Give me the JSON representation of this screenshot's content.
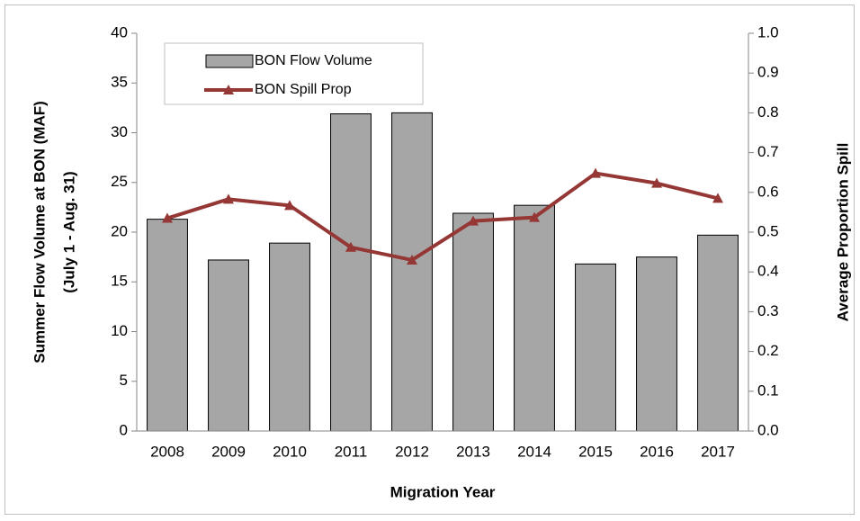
{
  "chart_data": {
    "type": "bar",
    "xlabel": "Migration Year",
    "ylabel": [
      "Summer Flow Volume at BON (MAF)",
      "(July 1 - Aug. 31)"
    ],
    "y2label": "Average Proportion Spill",
    "categories": [
      "2008",
      "2009",
      "2010",
      "2011",
      "2012",
      "2013",
      "2014",
      "2015",
      "2016",
      "2017"
    ],
    "series": [
      {
        "name": "BON Flow Volume",
        "type": "bar",
        "axis": "y",
        "color": "#a6a6a6",
        "values": [
          21.3,
          17.2,
          18.9,
          31.9,
          32.0,
          21.9,
          22.7,
          16.8,
          17.5,
          19.7
        ]
      },
      {
        "name": "BON Spill Prop",
        "type": "line",
        "axis": "y2",
        "color": "#953735",
        "values": [
          0.535,
          0.583,
          0.567,
          0.462,
          0.43,
          0.528,
          0.537,
          0.648,
          0.623,
          0.585
        ]
      }
    ],
    "ylim": [
      0,
      40
    ],
    "yticks": [
      0,
      5,
      10,
      15,
      20,
      25,
      30,
      35,
      40
    ],
    "y2lim": [
      0,
      1
    ],
    "y2ticks": [
      {
        "value": 0,
        "label": "0.0"
      },
      0.1,
      0.2,
      0.3,
      0.4,
      0.5,
      0.6,
      0.7,
      0.8,
      0.9,
      {
        "value": 1,
        "label": "1.0"
      }
    ],
    "legend": "upper left"
  }
}
